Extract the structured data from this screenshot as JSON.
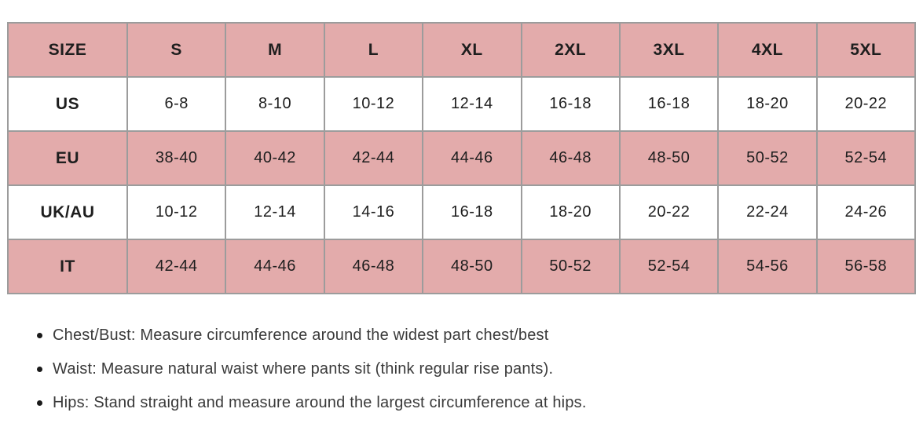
{
  "colors": {
    "header_bg": "#e3abab",
    "row_bg": "#ffffff",
    "border": "#9c9c9c",
    "cell_text": "#1e1e1e",
    "note_text": "#3a3a3a",
    "bullet": "#1a1a1a",
    "page_bg": "#ffffff"
  },
  "size_table": {
    "header": [
      "SIZE",
      "S",
      "M",
      "L",
      "XL",
      "2XL",
      "3XL",
      "4XL",
      "5XL"
    ],
    "rows": [
      {
        "label": "US",
        "values": [
          "6-8",
          "8-10",
          "10-12",
          "12-14",
          "16-18",
          "16-18",
          "18-20",
          "20-22"
        ]
      },
      {
        "label": "EU",
        "values": [
          "38-40",
          "40-42",
          "42-44",
          "44-46",
          "46-48",
          "48-50",
          "50-52",
          "52-54"
        ]
      },
      {
        "label": "UK/AU",
        "values": [
          "10-12",
          "12-14",
          "14-16",
          "16-18",
          "18-20",
          "20-22",
          "22-24",
          "24-26"
        ]
      },
      {
        "label": "IT",
        "values": [
          "42-44",
          "44-46",
          "46-48",
          "48-50",
          "50-52",
          "52-54",
          "54-56",
          "56-58"
        ]
      }
    ]
  },
  "notes": [
    "Chest/Bust: Measure circumference around the widest part chest/best",
    "Waist: Measure natural waist where pants sit (think regular rise pants).",
    "Hips: Stand straight and measure around the largest circumference at hips."
  ]
}
